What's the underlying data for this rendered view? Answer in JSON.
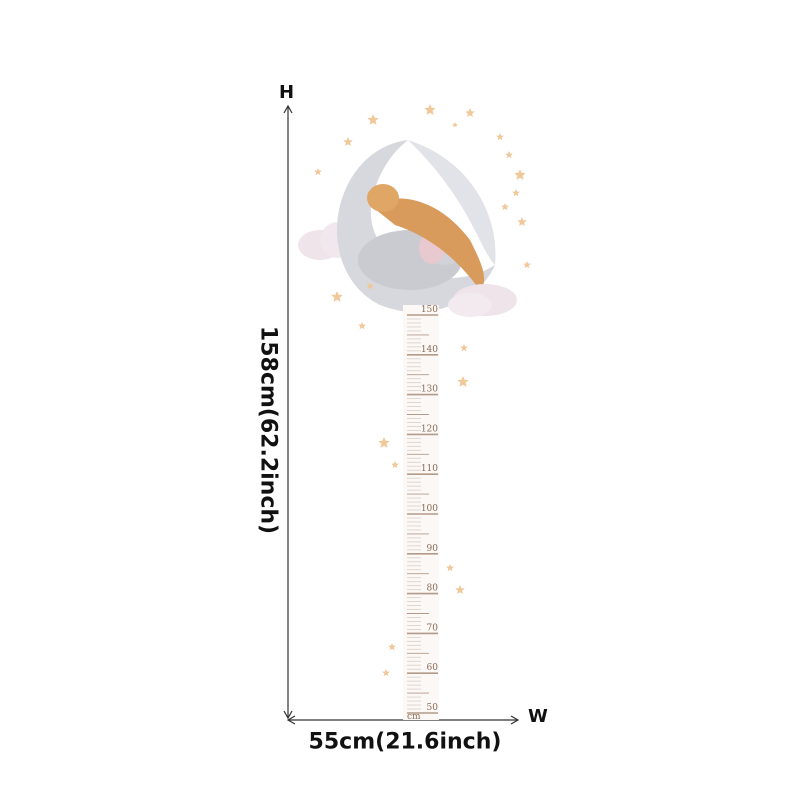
{
  "dimensions": {
    "height_letter": "H",
    "width_letter": "W",
    "height_text": "158cm(62.2inch)",
    "width_text": "55cm(21.6inch)"
  },
  "ruler": {
    "unit": "cm",
    "labels": [
      "150",
      "140",
      "130",
      "120",
      "110",
      "100",
      "90",
      "80",
      "70",
      "60",
      "50"
    ],
    "min": 50,
    "max": 150
  },
  "illustration": {
    "subject": "sleeping giraffe and elephant on crescent moon with clouds and stars"
  },
  "colors": {
    "ruler_line": "#b39a8a",
    "label": "#8a6a55",
    "star": "#f0c89a",
    "moon": "#d4d6dc",
    "giraffe": "#d99b5c",
    "cloud": "#eee4ea"
  }
}
